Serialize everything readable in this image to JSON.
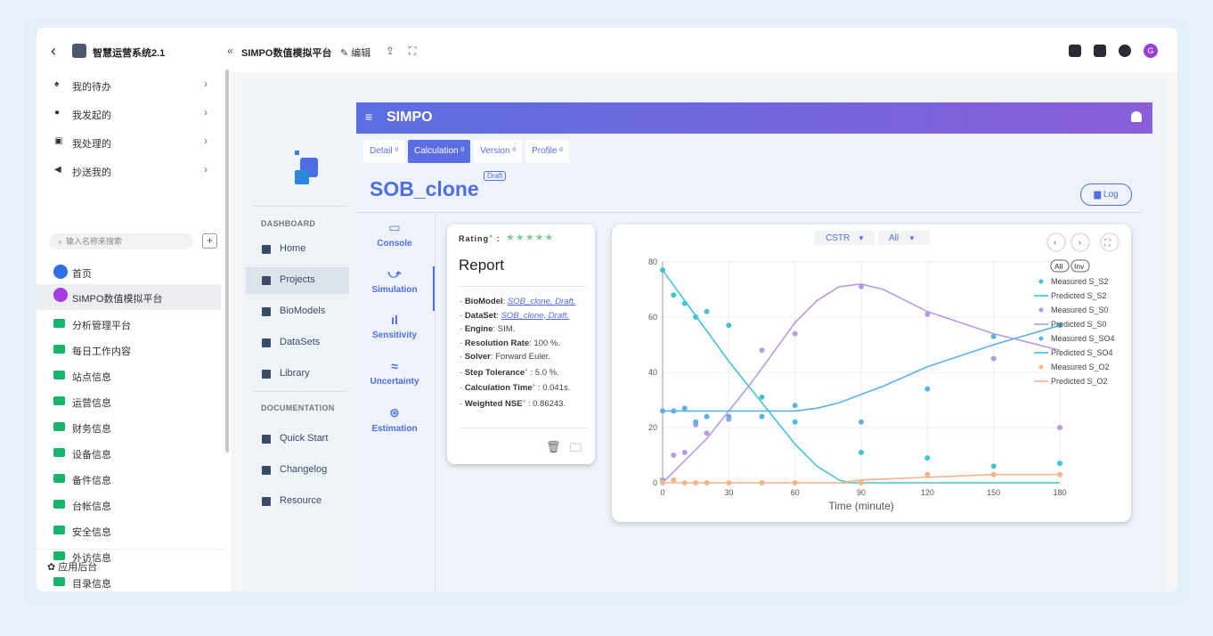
{
  "topbar": {
    "app_name": "智慧运营系统2.1",
    "page_title": "SIMPO数值模拟平台",
    "edit_label": "编辑"
  },
  "sidebar": {
    "items": [
      {
        "label": "我的待办"
      },
      {
        "label": "我发起的"
      },
      {
        "label": "我处理的"
      },
      {
        "label": "抄送我的"
      }
    ],
    "search_placeholder": "输入名称来搜索",
    "nav": [
      {
        "label": "首页"
      },
      {
        "label": "SIMPO数值模拟平台"
      },
      {
        "label": "分析管理平台"
      },
      {
        "label": "每日工作内容"
      },
      {
        "label": "站点信息"
      },
      {
        "label": "运营信息"
      },
      {
        "label": "财务信息"
      },
      {
        "label": "设备信息"
      },
      {
        "label": "备件信息"
      },
      {
        "label": "台帐信息"
      },
      {
        "label": "安全信息"
      },
      {
        "label": "外访信息"
      },
      {
        "label": "目录信息"
      }
    ],
    "admin_label": "应用后台"
  },
  "docs": {
    "dashboard_heading": "DASHBOARD",
    "dashboard_items": [
      {
        "label": "Home"
      },
      {
        "label": "Projects"
      },
      {
        "label": "BioModels"
      },
      {
        "label": "DataSets"
      },
      {
        "label": "Library"
      }
    ],
    "documentation_heading": "DOCUMENTATION",
    "documentation_items": [
      {
        "label": "Quick Start"
      },
      {
        "label": "Changelog"
      },
      {
        "label": "Resource"
      }
    ]
  },
  "simpo": {
    "title": "SIMPO",
    "tabs": [
      {
        "label": "Detail ᵅ"
      },
      {
        "label": "Calculation ᵅ"
      },
      {
        "label": "Version ᵅ"
      },
      {
        "label": "Profile ᵅ"
      }
    ],
    "project_title": "SOB_clone",
    "draft_badge": "Draft",
    "log_button": "Log",
    "vnav": [
      {
        "label": "Console"
      },
      {
        "label": "Simulation"
      },
      {
        "label": "Sensitivity"
      },
      {
        "label": "Uncertainty"
      },
      {
        "label": "Estimation"
      }
    ]
  },
  "report": {
    "rating_label": "Rating",
    "stars": "★★★★★",
    "title": "Report",
    "rows": [
      {
        "key": "BioModel",
        "value": "SOB_clone, Draft."
      },
      {
        "key": "DataSet",
        "value": "SOB_clone, Draft."
      },
      {
        "key": "Engine",
        "value": "SIM."
      },
      {
        "key": "Resolution Rate",
        "value": "100 %."
      },
      {
        "key": "Solver",
        "value": "Forward Euler."
      },
      {
        "key": "Step Tolerance",
        "value": "5.0 %."
      },
      {
        "key": "Calculation Time",
        "value": "0.041s."
      },
      {
        "key": "Weighted NSE",
        "value": "0.86243."
      }
    ]
  },
  "chart_controls": {
    "reactor": "CSTR",
    "filter": "All",
    "btn_all": "All",
    "btn_inv": "Inv"
  },
  "chart_data": {
    "type": "scatter",
    "xlabel": "Time (minute)",
    "x_ticks": [
      0,
      30,
      60,
      90,
      120,
      150,
      180
    ],
    "y_ticks": [
      0,
      20,
      40,
      60,
      80
    ],
    "xlim": [
      0,
      180
    ],
    "ylim": [
      0,
      80
    ],
    "legend_position": "top-right",
    "colors": {
      "S_S2": "#40c4d2",
      "S_S0": "#b49ce0",
      "S_SO4": "#5ab3e6",
      "S_O2": "#f6b48a"
    },
    "series": [
      {
        "name": "Measured S_S2",
        "kind": "points",
        "color": "#40c4d2",
        "x": [
          0,
          5,
          10,
          15,
          20,
          30,
          45,
          60,
          90,
          120,
          150,
          180
        ],
        "y": [
          77,
          68,
          65,
          60,
          62,
          57,
          31,
          22,
          11,
          9,
          6,
          7
        ]
      },
      {
        "name": "Predicted S_S2",
        "kind": "line",
        "color": "#40c4d2",
        "x": [
          0,
          10,
          20,
          30,
          40,
          50,
          60,
          70,
          80,
          85,
          90,
          180
        ],
        "y": [
          77,
          66,
          55,
          44,
          34,
          24,
          14,
          6,
          1,
          0,
          0,
          0
        ]
      },
      {
        "name": "Measured S_S0",
        "kind": "points",
        "color": "#b49ce0",
        "x": [
          0,
          5,
          10,
          15,
          20,
          30,
          45,
          60,
          90,
          120,
          150,
          180
        ],
        "y": [
          1,
          10,
          11,
          21,
          18,
          23,
          48,
          54,
          71,
          61,
          45,
          20
        ]
      },
      {
        "name": "Predicted S_S0",
        "kind": "line",
        "color": "#b49ce0",
        "x": [
          0,
          10,
          20,
          30,
          40,
          50,
          60,
          70,
          80,
          90,
          100,
          120,
          150,
          180
        ],
        "y": [
          0,
          8,
          16,
          26,
          36,
          47,
          58,
          66,
          71,
          72,
          70,
          62,
          54,
          48
        ]
      },
      {
        "name": "Measured S_SO4",
        "kind": "points",
        "color": "#5ab3e6",
        "x": [
          0,
          5,
          10,
          15,
          20,
          30,
          45,
          60,
          90,
          120,
          150,
          180
        ],
        "y": [
          26,
          26,
          27,
          22,
          24,
          24,
          24,
          28,
          22,
          34,
          53,
          57
        ]
      },
      {
        "name": "Predicted S_SO4",
        "kind": "line",
        "color": "#5ab3e6",
        "x": [
          0,
          30,
          60,
          70,
          80,
          90,
          100,
          120,
          150,
          180
        ],
        "y": [
          26,
          26,
          26,
          27,
          29,
          32,
          35,
          42,
          50,
          57
        ]
      },
      {
        "name": "Measured S_O2",
        "kind": "points",
        "color": "#f6b48a",
        "x": [
          0,
          5,
          10,
          15,
          20,
          30,
          45,
          60,
          90,
          120,
          150,
          180
        ],
        "y": [
          0,
          1,
          0,
          0,
          0,
          0,
          0,
          0,
          0,
          3,
          3,
          3
        ]
      },
      {
        "name": "Predicted S_O2",
        "kind": "line",
        "color": "#f6b48a",
        "x": [
          0,
          30,
          60,
          80,
          90,
          120,
          150,
          180
        ],
        "y": [
          0,
          0,
          0,
          0,
          1,
          2,
          3,
          3
        ]
      }
    ]
  }
}
